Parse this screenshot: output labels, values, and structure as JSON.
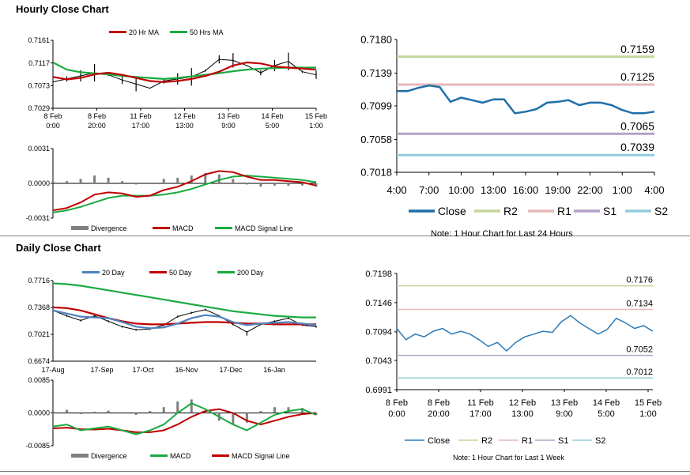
{
  "sections": {
    "hourly_title": "Hourly Close Chart",
    "daily_title": "Daily Close Chart"
  },
  "colors": {
    "ma_short": "#c00000",
    "ma_long": "#1aab40",
    "ma_blue": "#4f81bd",
    "close": "#1f6fa8",
    "close_light": "#2a7ab8",
    "r2": "#c3d69b",
    "r1": "#e6b9b8",
    "s1": "#b3a2c7",
    "s2": "#92cddc",
    "divergence": "#808080"
  },
  "chart_data": [
    {
      "id": "hourly_price",
      "type": "line",
      "legend": [
        "20 Hr MA",
        "50 Hrs MA"
      ],
      "y_ticks": [
        "0.7161",
        "0.7117",
        "0.7073",
        "0.7029"
      ],
      "ylim": [
        0.7029,
        0.7161
      ],
      "x_ticks": [
        "8 Feb\n0:00",
        "8 Feb\n20:00",
        "11 Feb\n17:00",
        "12 Feb\n13:00",
        "13 Feb\n9:00",
        "14 Feb\n5:00",
        "15 Feb\n1:00"
      ],
      "series": [
        {
          "name": "20 Hr MA",
          "values": [
            0.709,
            0.7085,
            0.7088,
            0.7095,
            0.7098,
            0.7094,
            0.7088,
            0.7082,
            0.708,
            0.7082,
            0.7086,
            0.7092,
            0.71,
            0.7112,
            0.7118,
            0.7116,
            0.711,
            0.7108,
            0.7106,
            0.7104
          ]
        },
        {
          "name": "50 Hrs MA",
          "values": [
            0.7118,
            0.7104,
            0.7099,
            0.7097,
            0.7095,
            0.7092,
            0.709,
            0.7088,
            0.7086,
            0.7088,
            0.7091,
            0.7094,
            0.7097,
            0.7101,
            0.7104,
            0.7106,
            0.7107,
            0.7108,
            0.7108,
            0.7108
          ]
        },
        {
          "name": "Close",
          "values": [
            0.708,
            0.7086,
            0.7092,
            0.7098,
            0.7094,
            0.7084,
            0.7076,
            0.7068,
            0.7082,
            0.7086,
            0.709,
            0.7102,
            0.7124,
            0.7122,
            0.7112,
            0.7098,
            0.7112,
            0.712,
            0.71,
            0.7094
          ]
        }
      ]
    },
    {
      "id": "hourly_macd",
      "type": "line",
      "legend": [
        "Divergence",
        "MACD",
        "MACD Signal Line"
      ],
      "y_ticks": [
        "0.0031",
        "0.0000",
        "-0.0031"
      ],
      "ylim": [
        -0.0031,
        0.0031
      ],
      "series": [
        {
          "name": "MACD",
          "values": [
            -0.0024,
            -0.0022,
            -0.0017,
            -0.001,
            -0.0008,
            -0.0009,
            -0.0012,
            -0.0011,
            -0.0006,
            -0.0003,
            0.0002,
            0.0008,
            0.0011,
            0.001,
            0.0006,
            0.0003,
            0.0003,
            0.0002,
            0.0001,
            -0.0002
          ]
        },
        {
          "name": "MACD Signal Line",
          "values": [
            -0.0026,
            -0.0024,
            -0.0021,
            -0.0017,
            -0.0013,
            -0.0011,
            -0.0011,
            -0.0011,
            -0.001,
            -0.0008,
            -0.0005,
            -0.0001,
            0.0003,
            0.0006,
            0.0007,
            0.0006,
            0.0005,
            0.0004,
            0.0003,
            0.0001
          ]
        },
        {
          "name": "Divergence",
          "values": [
            0.0002,
            0.0002,
            0.0004,
            0.0007,
            0.0005,
            0.0002,
            -0.0001,
            0.0,
            0.0004,
            0.0005,
            0.0007,
            0.0009,
            0.0008,
            0.0004,
            -0.0001,
            -0.0003,
            -0.0002,
            -0.0002,
            -0.0002,
            -0.0003
          ]
        }
      ]
    },
    {
      "id": "hourly_levels",
      "type": "line",
      "y_ticks": [
        "0.7180",
        "0.7139",
        "0.7099",
        "0.7058",
        "0.7018"
      ],
      "ylim": [
        0.7018,
        0.718
      ],
      "x_ticks": [
        "4:00",
        "7:00",
        "10:00",
        "13:00",
        "16:00",
        "19:00",
        "22:00",
        "1:00",
        "4:00"
      ],
      "legend": [
        "Close",
        "R2",
        "R1",
        "S1",
        "S2"
      ],
      "levels": [
        {
          "name": "R2",
          "value": 0.7159,
          "label": "0.7159"
        },
        {
          "name": "R1",
          "value": 0.7125,
          "label": "0.7125"
        },
        {
          "name": "S1",
          "value": 0.7065,
          "label": "0.7065"
        },
        {
          "name": "S2",
          "value": 0.7039,
          "label": "0.7039"
        }
      ],
      "series": [
        {
          "name": "Close",
          "values": [
            0.7117,
            0.7117,
            0.7121,
            0.7124,
            0.7122,
            0.7104,
            0.7109,
            0.7106,
            0.7103,
            0.7107,
            0.7107,
            0.709,
            0.7092,
            0.7095,
            0.7103,
            0.7104,
            0.7106,
            0.71,
            0.7103,
            0.7103,
            0.71,
            0.7094,
            0.709,
            0.709,
            0.7092
          ]
        }
      ],
      "note": "Note: 1 Hour Chart for Last 24 Hours"
    },
    {
      "id": "daily_price",
      "type": "line",
      "legend": [
        "20 Day",
        "50 Day",
        "200 Day"
      ],
      "y_ticks": [
        "0.7716",
        "0.7368",
        "0.7021",
        "0.6674"
      ],
      "ylim": [
        0.6674,
        0.7716
      ],
      "x_ticks": [
        "17-Aug",
        "17-Sep",
        "17-Oct",
        "16-Nov",
        "17-Dec",
        "16-Jan"
      ],
      "series": [
        {
          "name": "20 Day",
          "values": [
            0.733,
            0.729,
            0.725,
            0.724,
            0.723,
            0.718,
            0.712,
            0.71,
            0.711,
            0.716,
            0.723,
            0.727,
            0.725,
            0.718,
            0.714,
            0.716,
            0.717,
            0.718,
            0.716,
            0.714
          ]
        },
        {
          "name": "50 Day",
          "values": [
            0.737,
            0.736,
            0.733,
            0.728,
            0.723,
            0.719,
            0.716,
            0.715,
            0.715,
            0.716,
            0.717,
            0.718,
            0.718,
            0.717,
            0.716,
            0.716,
            0.715,
            0.715,
            0.715,
            0.715
          ]
        },
        {
          "name": "200 Day",
          "values": [
            0.768,
            0.767,
            0.765,
            0.762,
            0.759,
            0.756,
            0.753,
            0.75,
            0.747,
            0.744,
            0.741,
            0.738,
            0.735,
            0.732,
            0.73,
            0.728,
            0.726,
            0.725,
            0.724,
            0.724
          ]
        },
        {
          "name": "Close",
          "values": [
            0.733,
            0.726,
            0.72,
            0.726,
            0.719,
            0.712,
            0.708,
            0.709,
            0.714,
            0.725,
            0.73,
            0.734,
            0.726,
            0.715,
            0.705,
            0.715,
            0.719,
            0.723,
            0.714,
            0.712
          ]
        }
      ]
    },
    {
      "id": "daily_macd",
      "type": "line",
      "legend": [
        "Divergence",
        "MACD",
        "MACD Signal Line"
      ],
      "y_ticks": [
        "0.0085",
        "0.0000",
        "-0.0085"
      ],
      "ylim": [
        -0.0085,
        0.0085
      ],
      "series": [
        {
          "name": "MACD",
          "values": [
            -0.0035,
            -0.003,
            -0.0045,
            -0.004,
            -0.0035,
            -0.0045,
            -0.0055,
            -0.0045,
            -0.003,
            0.0,
            0.0025,
            0.001,
            -0.001,
            -0.003,
            -0.0045,
            -0.0025,
            -0.0005,
            0.0005,
            0.001,
            -0.0005
          ]
        },
        {
          "name": "MACD Signal Line",
          "values": [
            -0.004,
            -0.0038,
            -0.0042,
            -0.0043,
            -0.0041,
            -0.0045,
            -0.005,
            -0.005,
            -0.0045,
            -0.003,
            -0.001,
            0.0005,
            0.001,
            0.0,
            -0.002,
            -0.003,
            -0.002,
            -0.001,
            -0.0003,
            0.0
          ]
        },
        {
          "name": "Divergence",
          "values": [
            0.0005,
            0.0008,
            -0.0003,
            0.0003,
            0.0006,
            0.0,
            -0.0005,
            0.0005,
            0.0015,
            0.003,
            0.0035,
            0.0005,
            -0.002,
            -0.003,
            -0.0025,
            0.0005,
            0.0015,
            0.0015,
            0.0013,
            -0.0005
          ]
        }
      ]
    },
    {
      "id": "weekly_levels",
      "type": "line",
      "y_ticks": [
        "0.7198",
        "0.7146",
        "0.7094",
        "0.7043",
        "0.6991"
      ],
      "ylim": [
        0.6991,
        0.7198
      ],
      "x_ticks": [
        "8 Feb\n0:00",
        "8 Feb\n20:00",
        "11 Feb\n17:00",
        "12 Feb\n13:00",
        "13 Feb\n9:00",
        "14 Feb\n5:00",
        "15 Feb\n1:00"
      ],
      "legend": [
        "Close",
        "R2",
        "R1",
        "S1",
        "S2"
      ],
      "levels": [
        {
          "name": "R2",
          "value": 0.7176,
          "label": "0.7176"
        },
        {
          "name": "R1",
          "value": 0.7134,
          "label": "0.7134"
        },
        {
          "name": "S1",
          "value": 0.7052,
          "label": "0.7052"
        },
        {
          "name": "S2",
          "value": 0.7012,
          "label": "0.7012"
        }
      ],
      "series": [
        {
          "name": "Close",
          "values": [
            0.71,
            0.708,
            0.709,
            0.7085,
            0.7095,
            0.71,
            0.709,
            0.7095,
            0.709,
            0.708,
            0.7068,
            0.7075,
            0.706,
            0.7075,
            0.7085,
            0.709,
            0.7095,
            0.7093,
            0.7112,
            0.7123,
            0.711,
            0.71,
            0.709,
            0.7098,
            0.7118,
            0.711,
            0.71,
            0.7105,
            0.7095
          ]
        }
      ],
      "note": "Note: 1 Hour Chart for Last 1 Week"
    }
  ]
}
